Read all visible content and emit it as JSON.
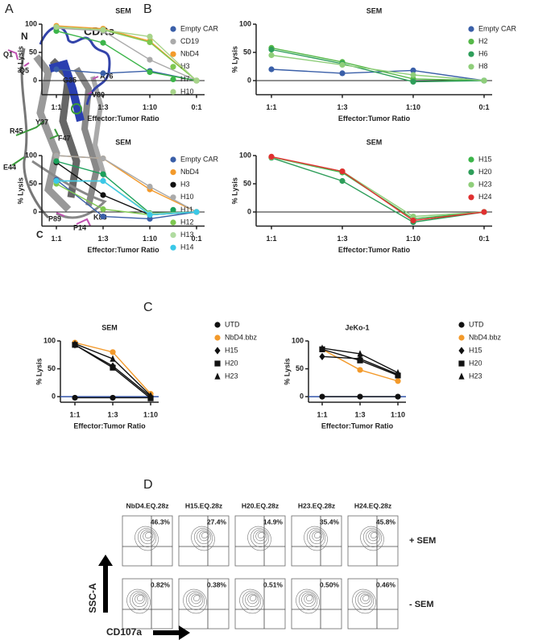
{
  "panel_labels": [
    "A",
    "B",
    "C",
    "D"
  ],
  "structure": {
    "n": "N",
    "c": "C",
    "cdrs": "CDRs",
    "residues": [
      "Q1",
      "Q5",
      "G35",
      "A76",
      "V80",
      "Y37",
      "R45",
      "F47",
      "E44",
      "P89",
      "K88",
      "P14"
    ]
  },
  "chart_data": [
    {
      "type": "line",
      "title": "SEM",
      "xlabel": "Effector:Tumor Ratio",
      "ylabel": "% Lysis",
      "categories": [
        "1:1",
        "1:3",
        "1:10",
        "0:1"
      ],
      "ylim": [
        -25,
        100
      ],
      "yticks": [
        0,
        50,
        100
      ],
      "zero_line": true,
      "legend": "right",
      "series": [
        {
          "name": "Empty CAR",
          "color": "#3a5fa8",
          "values": [
            20,
            13,
            17,
            0
          ]
        },
        {
          "name": "CD19",
          "color": "#aaaaaa",
          "values": [
            93,
            88,
            37,
            0
          ]
        },
        {
          "name": "NbD4",
          "color": "#f39a2b",
          "values": [
            97,
            92,
            70,
            0
          ]
        },
        {
          "name": "H3",
          "color": "#7ec850",
          "values": [
            95,
            90,
            68,
            0
          ]
        },
        {
          "name": "H7",
          "color": "#3cb54a",
          "values": [
            88,
            67,
            15,
            0
          ]
        },
        {
          "name": "H10",
          "color": "#a8d48a",
          "values": [
            95,
            90,
            78,
            0
          ]
        }
      ]
    },
    {
      "type": "line",
      "title": "SEM",
      "xlabel": "Effector:Tumor Ratio",
      "ylabel": "% Lysis",
      "categories": [
        "1:1",
        "1:3",
        "1:10",
        "0:1"
      ],
      "ylim": [
        -25,
        100
      ],
      "yticks": [
        0,
        50,
        100
      ],
      "zero_line": true,
      "legend": "right",
      "series": [
        {
          "name": "Empty CAR",
          "color": "#3a5fa8",
          "values": [
            20,
            13,
            18,
            0
          ]
        },
        {
          "name": "H2",
          "color": "#55b848",
          "values": [
            58,
            33,
            3,
            0
          ]
        },
        {
          "name": "H6",
          "color": "#2e9e5a",
          "values": [
            55,
            30,
            -2,
            0
          ]
        },
        {
          "name": "H8",
          "color": "#8fce7a",
          "values": [
            45,
            28,
            10,
            0
          ]
        }
      ]
    },
    {
      "type": "line",
      "title": "SEM",
      "xlabel": "Effector:Tumor Ratio",
      "ylabel": "% Lysis",
      "categories": [
        "1:1",
        "1:3",
        "1:10",
        "0:1"
      ],
      "ylim": [
        -25,
        100
      ],
      "yticks": [
        0,
        50,
        100
      ],
      "zero_line": true,
      "legend": "right",
      "series": [
        {
          "name": "Empty CAR",
          "color": "#3a5fa8",
          "values": [
            57,
            -8,
            -12,
            0
          ]
        },
        {
          "name": "NbD4",
          "color": "#f39a2b",
          "values": [
            100,
            95,
            40,
            0
          ]
        },
        {
          "name": "H3",
          "color": "#111111",
          "values": [
            88,
            30,
            -5,
            0
          ]
        },
        {
          "name": "H10",
          "color": "#aaaaaa",
          "values": [
            100,
            95,
            45,
            0
          ]
        },
        {
          "name": "H11",
          "color": "#1aa05a",
          "values": [
            90,
            67,
            -2,
            0
          ]
        },
        {
          "name": "H12",
          "color": "#7ec850",
          "values": [
            50,
            5,
            -5,
            0
          ]
        },
        {
          "name": "H13",
          "color": "#b0dba0",
          "values": [
            55,
            55,
            -3,
            0
          ]
        },
        {
          "name": "H14",
          "color": "#3ac8e8",
          "values": [
            55,
            55,
            -5,
            0
          ]
        }
      ]
    },
    {
      "type": "line",
      "title": "SEM",
      "xlabel": "Effector:Tumor Ratio",
      "ylabel": "% Lysis",
      "categories": [
        "1:1",
        "1:3",
        "1:10",
        "0:1"
      ],
      "ylim": [
        -25,
        100
      ],
      "yticks": [
        0,
        50,
        100
      ],
      "zero_line": true,
      "legend": "right",
      "series": [
        {
          "name": "H15",
          "color": "#3cb54a",
          "values": [
            97,
            70,
            -12,
            0
          ]
        },
        {
          "name": "H20",
          "color": "#2e9e5a",
          "values": [
            96,
            55,
            -18,
            0
          ]
        },
        {
          "name": "H23",
          "color": "#8fce7a",
          "values": [
            97,
            72,
            -8,
            0
          ]
        },
        {
          "name": "H24",
          "color": "#e03030",
          "values": [
            98,
            72,
            -15,
            0
          ]
        }
      ]
    },
    {
      "type": "line",
      "title": "SEM",
      "xlabel": "Effector:Tumor Ratio",
      "ylabel": "% Lysis",
      "categories": [
        "1:1",
        "1:3",
        "1:10"
      ],
      "ylim": [
        -10,
        100
      ],
      "yticks": [
        0,
        50,
        100
      ],
      "zero_line": true,
      "legend": "right",
      "series": [
        {
          "name": "UTD",
          "color": "#111111",
          "marker": "circle",
          "values": [
            -2,
            -2,
            -2
          ]
        },
        {
          "name": "NbD4.bbz",
          "color": "#f39a2b",
          "marker": "circle",
          "values": [
            97,
            80,
            5
          ]
        },
        {
          "name": "H15",
          "color": "#111111",
          "marker": "diamond",
          "values": [
            93,
            55,
            0
          ]
        },
        {
          "name": "H20",
          "color": "#111111",
          "marker": "square",
          "values": [
            93,
            52,
            -3
          ]
        },
        {
          "name": "H23",
          "color": "#111111",
          "marker": "triangle",
          "values": [
            95,
            68,
            2
          ]
        }
      ]
    },
    {
      "type": "line",
      "title": "JeKo-1",
      "xlabel": "Effector:Tumor Ratio",
      "ylabel": "% Lysis",
      "categories": [
        "1:1",
        "1:3",
        "1:10"
      ],
      "ylim": [
        -10,
        100
      ],
      "yticks": [
        0,
        50,
        100
      ],
      "zero_line": true,
      "legend": "right",
      "series": [
        {
          "name": "UTD",
          "color": "#111111",
          "marker": "circle",
          "values": [
            0,
            0,
            0
          ]
        },
        {
          "name": "NbD4.bbz",
          "color": "#f39a2b",
          "marker": "circle",
          "values": [
            85,
            48,
            28
          ]
        },
        {
          "name": "H15",
          "color": "#111111",
          "marker": "diamond",
          "values": [
            72,
            68,
            40
          ]
        },
        {
          "name": "H20",
          "color": "#111111",
          "marker": "square",
          "values": [
            85,
            65,
            38
          ]
        },
        {
          "name": "H23",
          "color": "#111111",
          "marker": "triangle",
          "values": [
            87,
            77,
            43
          ]
        }
      ]
    }
  ],
  "flow": {
    "ylabel": "SSC-A",
    "xlabel": "CD107a",
    "rows": [
      "+ SEM",
      "- SEM"
    ],
    "columns": [
      {
        "label": "NbD4.EQ.28z",
        "top": "46.3%",
        "bottom": "0.82%"
      },
      {
        "label": "H15.EQ.28z",
        "top": "27.4%",
        "bottom": "0.38%"
      },
      {
        "label": "H20.EQ.28z",
        "top": "14.9%",
        "bottom": "0.51%"
      },
      {
        "label": "H23.EQ.28z",
        "top": "35.4%",
        "bottom": "0.50%"
      },
      {
        "label": "H24.EQ.28z",
        "top": "45.8%",
        "bottom": "0.46%"
      }
    ]
  }
}
